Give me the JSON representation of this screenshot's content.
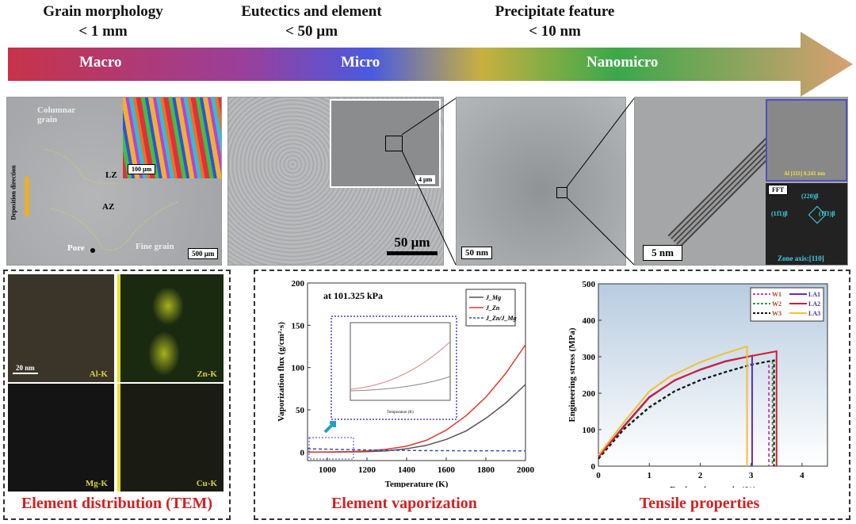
{
  "header": {
    "titles": [
      {
        "line1": "Grain morphology",
        "line2": "< 1 mm"
      },
      {
        "line1": "Eutectics and element",
        "line2": "< 50 µm"
      },
      {
        "line1": "Precipitate feature",
        "line2": "< 10 nm"
      }
    ],
    "scale_labels": [
      "Macro",
      "Micro",
      "Nanomicro"
    ],
    "arrow_colors": [
      "#c8334a",
      "#9a3f9a",
      "#4a5ae0",
      "#c8b040",
      "#3aa84a",
      "#d9a070"
    ]
  },
  "micrographs": {
    "macro": {
      "labels": {
        "columnar": "Columnar grain",
        "lz": "LZ",
        "az": "AZ",
        "pore": "Pore",
        "fine": "Fine grain",
        "direction": "Deposition direction"
      },
      "scale_bar": "500 µm",
      "inset_scale_bar": "100 µm"
    },
    "micro": {
      "scale_bar": "50 µm",
      "inset_scale_bar": "4 µm"
    },
    "nano": {
      "scale_bar": "50 nm"
    },
    "hrtem": {
      "scale_bar": "5 nm",
      "inset_label": "Al [111]  0.241 nm",
      "fft_label": "FFT",
      "fft_spots": [
        "(220)β",
        "(11̄1)β",
        "(1̄1̄1)β"
      ],
      "zone_axis": "Zone axis:[110]"
    }
  },
  "tem": {
    "scale_bar": "20 nm",
    "maps": [
      "Al-K",
      "Zn-K",
      "Mg-K",
      "Cu-K"
    ],
    "caption": "Element distribution (TEM)"
  },
  "vaporization": {
    "caption": "Element vaporization",
    "annotation": "at 101.325 kPa",
    "chart_data": {
      "type": "line",
      "xlabel": "Temperature (K)",
      "ylabel": "Vaporization flux (g/cm²·s)",
      "xlim": [
        900,
        2000
      ],
      "ylim": [
        -10,
        200
      ],
      "xticks": [
        1000,
        1200,
        1400,
        1600,
        1800,
        2000
      ],
      "yticks": [
        0,
        50,
        100,
        150,
        200
      ],
      "legend": "top-right",
      "x": [
        900,
        1000,
        1100,
        1200,
        1300,
        1400,
        1500,
        1600,
        1700,
        1800,
        1900,
        2000
      ],
      "series": [
        {
          "name": "J_Mg",
          "color": "#555555",
          "dash": false,
          "values": [
            0,
            0,
            0.2,
            0.6,
            1.5,
            4,
            8,
            15,
            25,
            40,
            58,
            80
          ]
        },
        {
          "name": "J_Zn",
          "color": "#e03a2a",
          "dash": false,
          "values": [
            0,
            0.2,
            0.6,
            1.5,
            3.5,
            7,
            14,
            26,
            43,
            65,
            93,
            127
          ]
        },
        {
          "name": "J_Zn/J_Mg",
          "color": "#3050c0",
          "dash": true,
          "values": [
            4,
            3.5,
            3,
            2.6,
            2.3,
            2,
            1.8,
            1.7,
            1.6,
            1.6,
            1.55,
            1.5
          ]
        }
      ],
      "inset": {
        "xlabel": "Temperature (K)",
        "ylabel": "Vaporization flux (g/cm²·s)",
        "xticks": [
          900,
          950,
          1000,
          1050,
          1100,
          1150
        ],
        "yticks": [
          "0.0",
          "0.5",
          "1.0",
          "1.5"
        ]
      }
    }
  },
  "tensile": {
    "caption": "Tensile properties",
    "chart_data": {
      "type": "line",
      "xlabel": "Engineering strain (%)",
      "ylabel": "Engineering stress (MPa)",
      "xlim": [
        0,
        4.5
      ],
      "ylim": [
        0,
        500
      ],
      "xticks": [
        0,
        1,
        2,
        3,
        4
      ],
      "yticks": [
        0,
        100,
        200,
        300,
        400,
        500
      ],
      "legend": "top-right",
      "series": [
        {
          "name": "W1",
          "color": "#d040c0",
          "dash": true,
          "x": [
            0,
            0.5,
            1,
            1.5,
            2,
            2.5,
            3,
            3.35,
            3.35
          ],
          "values": [
            20,
            100,
            160,
            205,
            235,
            258,
            278,
            288,
            0
          ]
        },
        {
          "name": "W2",
          "color": "#30a040",
          "dash": true,
          "x": [
            0,
            0.5,
            1,
            1.5,
            2,
            2.5,
            3,
            3.42,
            3.42
          ],
          "values": [
            20,
            100,
            160,
            205,
            236,
            259,
            279,
            289,
            0
          ]
        },
        {
          "name": "W3",
          "color": "#111111",
          "dash": true,
          "x": [
            0,
            0.5,
            1,
            1.5,
            2,
            2.5,
            3,
            3.45,
            3.45
          ],
          "values": [
            20,
            102,
            162,
            206,
            236,
            258,
            278,
            290,
            0
          ]
        },
        {
          "name": "LA1",
          "color": "#6030c0",
          "dash": false,
          "x": [
            0,
            0.5,
            1,
            1.5,
            2,
            2.5,
            3,
            3.02,
            3.02
          ],
          "values": [
            25,
            110,
            190,
            235,
            265,
            288,
            302,
            303,
            0
          ]
        },
        {
          "name": "LA2",
          "color": "#d02030",
          "dash": false,
          "x": [
            0,
            0.5,
            1,
            1.5,
            2,
            2.5,
            3,
            3.5,
            3.5
          ],
          "values": [
            25,
            108,
            188,
            236,
            264,
            287,
            302,
            315,
            0
          ]
        },
        {
          "name": "LA3",
          "color": "#f0c030",
          "dash": false,
          "x": [
            0,
            0.5,
            1,
            1.4,
            2,
            2.5,
            2.92,
            2.92
          ],
          "values": [
            30,
            120,
            205,
            245,
            285,
            310,
            328,
            0
          ]
        }
      ]
    }
  }
}
